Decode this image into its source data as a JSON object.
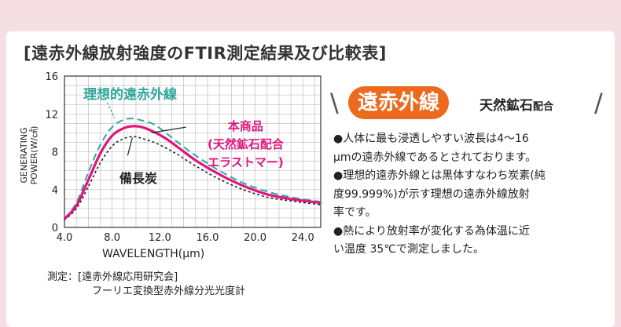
{
  "page": {
    "heading": "[遠赤外線放射強度のFTIR測定結果及び比較表]"
  },
  "chart_data": {
    "type": "line",
    "xlabel": "WAVELENGTH(μm)",
    "ylabel_lines": [
      "GENERATING",
      "POWER(W/㎠)"
    ],
    "xlim": [
      4,
      25.5
    ],
    "ylim": [
      0,
      16
    ],
    "x_ticks": [
      "4.0",
      "8.0",
      "12.0",
      "16.0",
      "20.0",
      "24.0"
    ],
    "y_ticks": [
      "0",
      "4",
      "8",
      "12",
      "16"
    ],
    "grid": true,
    "series": [
      {
        "name": "理想的遠赤外線",
        "color": "#2ea79a",
        "style": "dashed",
        "points": [
          [
            4.0,
            0.9
          ],
          [
            5.0,
            2.6
          ],
          [
            6.0,
            5.8
          ],
          [
            7.0,
            8.7
          ],
          [
            8.0,
            10.6
          ],
          [
            9.0,
            11.4
          ],
          [
            9.8,
            11.5
          ],
          [
            10.5,
            11.3
          ],
          [
            11.5,
            10.9
          ],
          [
            12.5,
            10.0
          ],
          [
            13.5,
            9.0
          ],
          [
            15.0,
            7.6
          ],
          [
            17.0,
            6.0
          ],
          [
            19.0,
            4.7
          ],
          [
            21.0,
            3.8
          ],
          [
            23.0,
            3.2
          ],
          [
            25.5,
            2.7
          ]
        ]
      },
      {
        "name": "本商品(天然鉱石配合エラストマー)",
        "color": "#e0157f",
        "style": "solid",
        "points": [
          [
            4.0,
            0.9
          ],
          [
            5.0,
            2.3
          ],
          [
            6.0,
            5.0
          ],
          [
            7.0,
            7.8
          ],
          [
            8.0,
            9.7
          ],
          [
            9.0,
            10.5
          ],
          [
            9.8,
            10.7
          ],
          [
            10.5,
            10.6
          ],
          [
            11.5,
            10.1
          ],
          [
            12.5,
            9.4
          ],
          [
            13.5,
            8.5
          ],
          [
            15.0,
            7.1
          ],
          [
            17.0,
            5.6
          ],
          [
            19.0,
            4.4
          ],
          [
            21.0,
            3.5
          ],
          [
            23.0,
            3.0
          ],
          [
            25.5,
            2.6
          ]
        ]
      },
      {
        "name": "備長炭",
        "color": "#222222",
        "style": "dotted",
        "points": [
          [
            4.0,
            0.8
          ],
          [
            5.0,
            2.0
          ],
          [
            6.0,
            4.3
          ],
          [
            7.0,
            6.8
          ],
          [
            8.0,
            8.6
          ],
          [
            9.0,
            9.4
          ],
          [
            9.8,
            9.6
          ],
          [
            10.5,
            9.4
          ],
          [
            11.5,
            9.0
          ],
          [
            12.5,
            8.4
          ],
          [
            13.5,
            7.7
          ],
          [
            15.0,
            6.5
          ],
          [
            17.0,
            5.1
          ],
          [
            19.0,
            4.0
          ],
          [
            21.0,
            3.2
          ],
          [
            23.0,
            2.8
          ],
          [
            25.5,
            2.4
          ]
        ]
      }
    ],
    "annotations": {
      "ideal": "理想的遠赤外線",
      "product_line1": "本商品",
      "product_line2": "(天然鉱石配合",
      "product_line3": "エラストマー)",
      "charcoal": "備長炭"
    }
  },
  "measure": {
    "line1": "測定：[遠赤外線応用研究会]",
    "line2": "フーリエ変換型赤外線分光光度計"
  },
  "side": {
    "badge": "遠赤外線",
    "sub_main": "天然鉱石",
    "sub_small": "配合",
    "slash_left": "\\",
    "slash_right": "/",
    "accent_color": "#ec6a1e",
    "lines": [
      "●人体に最も浸透しやすい波長は4～16",
      "μmの遠赤外線であるとされております。",
      "●理想的遠赤外線とは黒体すなわち炭素(純",
      "度99.999%)が示す理想の遠赤外線放射",
      "率です。",
      "●熱により放射率が変化する為体温に近",
      "い温度 35℃で測定しました。"
    ]
  }
}
